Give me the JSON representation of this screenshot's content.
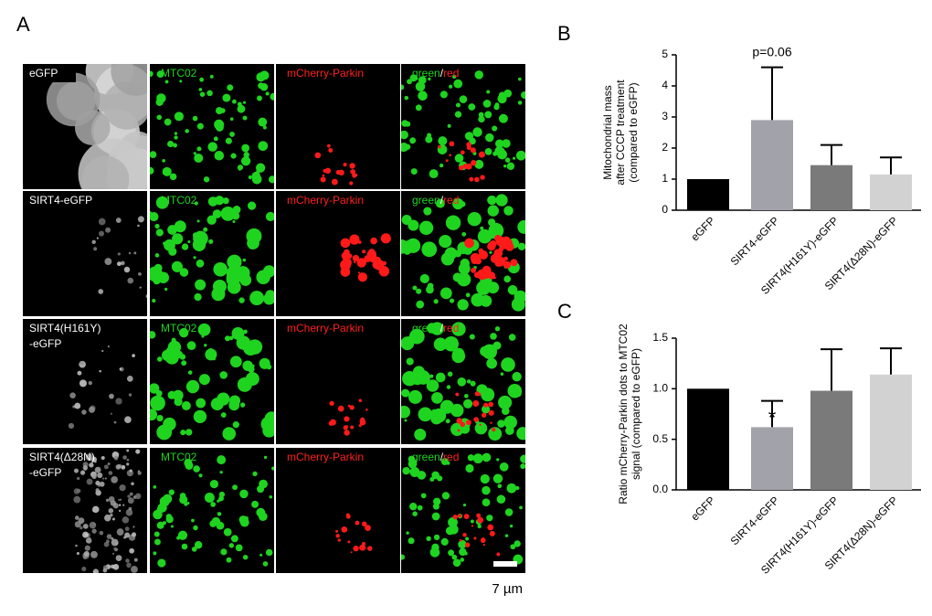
{
  "panel_labels": [
    "A",
    "B",
    "C"
  ],
  "microscopy": {
    "rows": [
      [
        "eGFP"
      ],
      [
        "SIRT4-eGFP"
      ],
      [
        "SIRT4(H161Y)",
        "-eGFP"
      ],
      [
        "SIRT4(Δ28N)",
        "-eGFP"
      ]
    ],
    "channels": [
      "MTC02",
      "mCherry-Parkin"
    ],
    "merge": [
      "green",
      "/",
      "red"
    ],
    "scale_bar": "7 µm"
  },
  "chart_data": [
    {
      "type": "bar",
      "ylabel": [
        "Mitochondrial mass",
        "after CCCP treatment",
        "(compared to eGFP)"
      ],
      "categories": [
        "eGFP",
        "SIRT4-eGFP",
        "SIRT4(H161Y)-eGFP",
        "SIRT4(Δ28N)-eGFP"
      ],
      "values": [
        1.0,
        2.9,
        1.45,
        1.15
      ],
      "errors": [
        0,
        1.7,
        0.65,
        0.55
      ],
      "colors": [
        "#000000",
        "#a2a2aa",
        "#7a7a7a",
        "#d2d2d2"
      ],
      "annotation": "p=0.06",
      "ylim": [
        0,
        5
      ],
      "yticks": [
        0,
        1,
        2,
        3,
        4,
        5
      ]
    },
    {
      "type": "bar",
      "ylabel": [
        "Ratio mCherry-Parkin dots to MTC02",
        "signal (compared to eGFP)"
      ],
      "categories": [
        "eGFP",
        "SIRT4-eGFP",
        "SIRT4(H161Y)-eGFP",
        "SIRT4(Δ28N)-eGFP"
      ],
      "values": [
        1.0,
        0.62,
        0.98,
        1.14
      ],
      "errors": [
        0,
        0.26,
        0.41,
        0.26
      ],
      "colors": [
        "#000000",
        "#a2a2aa",
        "#7a7a7a",
        "#d2d2d2"
      ],
      "annotation": "*",
      "ylim": [
        0,
        1.5
      ],
      "yticks": [
        {
          "value": 0,
          "label": "0.0"
        },
        {
          "value": 0.5,
          "label": "0.5"
        },
        {
          "value": 1,
          "label": "1.0"
        },
        {
          "value": 1.5,
          "label": "1.5"
        }
      ]
    }
  ]
}
